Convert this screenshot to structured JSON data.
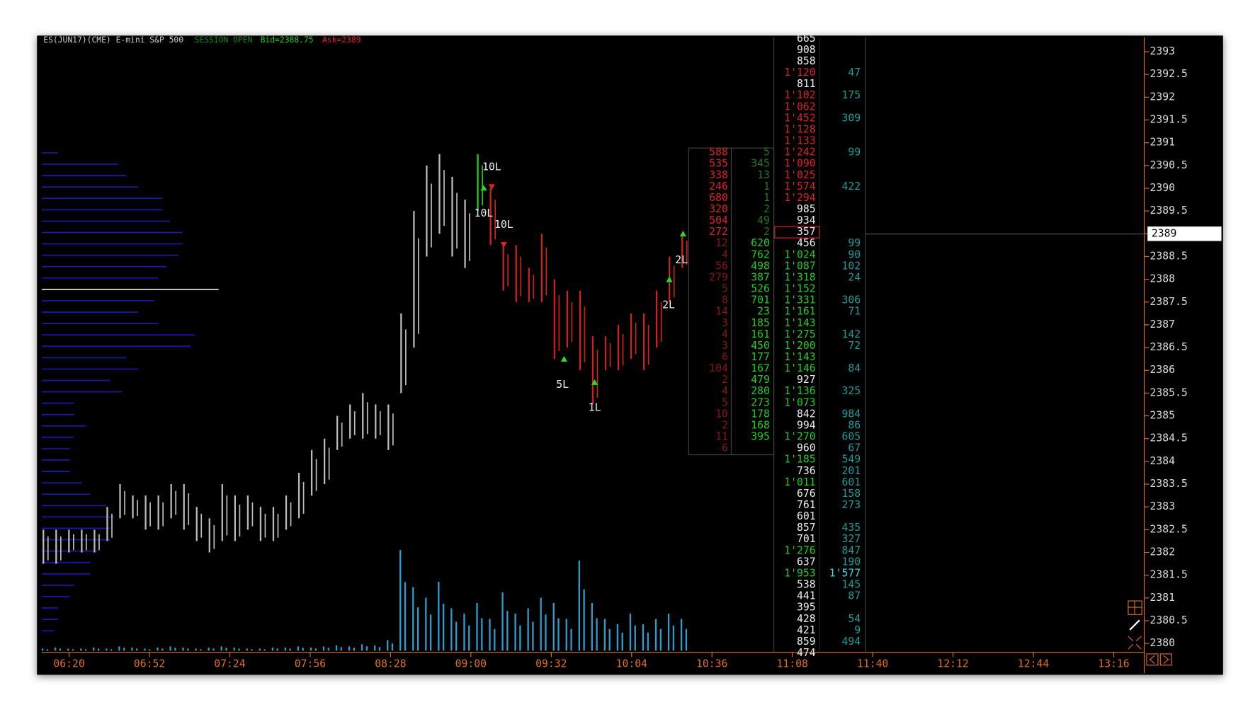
{
  "header": {
    "symbol": "ES(JUN17)(CME) E-mini S&P 500",
    "session": "SESSION OPEN",
    "bid": "Bid=2388.75",
    "ask": "Ask=2389"
  },
  "price_axis": {
    "ylim": [
      2380,
      2393
    ],
    "ticks": [
      2393,
      2392.5,
      2392,
      2391.5,
      2391,
      2390.5,
      2390,
      2389.5,
      2389,
      2388.5,
      2388,
      2387.5,
      2387,
      2386.5,
      2386,
      2385.5,
      2385,
      2384.5,
      2384,
      2383.5,
      2383,
      2382.5,
      2382,
      2381.5,
      2381,
      2380.5,
      2380
    ],
    "current": 2389
  },
  "time_axis": [
    "06:20",
    "06:52",
    "07:24",
    "07:56",
    "08:28",
    "09:00",
    "09:32",
    "10:04",
    "10:36",
    "11:08",
    "11:40",
    "12:12",
    "12:44",
    "13:16"
  ],
  "annotations": [
    "10L",
    "10L",
    "10L",
    "5L",
    "1L",
    "2L",
    "2L"
  ],
  "ladder": {
    "volume": [
      665,
      908,
      858,
      "1'120",
      811,
      "1'102",
      "1'062",
      "1'452",
      "1'128",
      "1'133",
      "1'242",
      "1'090",
      "1'025",
      "1'574",
      "1'294",
      985,
      934,
      357,
      456,
      "1'024",
      "1'087",
      "1'318",
      "1'152",
      "1'331",
      "1'161",
      "1'143",
      "1'275",
      "1'200",
      "1'143",
      "1'146",
      927,
      "1'136",
      "1'073",
      842,
      994,
      "1'270",
      960,
      "1'185",
      736,
      "1'011",
      676,
      761,
      601,
      857,
      701,
      "1'276",
      637,
      "1'953",
      538,
      441,
      395,
      428,
      421,
      859,
      474
    ],
    "bid": [
      null,
      null,
      null,
      null,
      null,
      null,
      null,
      null,
      null,
      null,
      588,
      535,
      338,
      246,
      680,
      320,
      504,
      272,
      12,
      4,
      56,
      279,
      5,
      8,
      14,
      3,
      4,
      3,
      6,
      104,
      2,
      4,
      5,
      10,
      2,
      11,
      6,
      null,
      null,
      null,
      null,
      null,
      null,
      null,
      null,
      null,
      null,
      null,
      null,
      null,
      null,
      null,
      null,
      null,
      null
    ],
    "ask": [
      null,
      null,
      null,
      null,
      null,
      null,
      null,
      null,
      null,
      null,
      5,
      345,
      13,
      1,
      1,
      2,
      49,
      2,
      620,
      762,
      498,
      387,
      526,
      701,
      23,
      185,
      161,
      450,
      177,
      167,
      479,
      280,
      273,
      178,
      168,
      395,
      null,
      null,
      null,
      null,
      null,
      null,
      null,
      null,
      null,
      null,
      null,
      null,
      null,
      null,
      null,
      null,
      null,
      null,
      null
    ],
    "delta": [
      null,
      null,
      null,
      47,
      null,
      175,
      null,
      309,
      null,
      null,
      99,
      null,
      null,
      422,
      null,
      null,
      null,
      null,
      99,
      90,
      102,
      24,
      null,
      306,
      71,
      null,
      142,
      72,
      null,
      84,
      null,
      325,
      null,
      984,
      86,
      605,
      67,
      549,
      201,
      601,
      158,
      273,
      null,
      435,
      327,
      847,
      190,
      "1'577",
      145,
      87,
      null,
      54,
      9,
      494,
      null
    ]
  },
  "price_bars": {
    "highs": [
      2382.5,
      2382.5,
      2382.5,
      2382.5,
      2382.5,
      2383,
      2383.5,
      2383.25,
      2383.25,
      2383.25,
      2383.5,
      2383.5,
      2383,
      2382.75,
      2383.5,
      2383.25,
      2383.25,
      2383,
      2383,
      2383.25,
      2383.75,
      2384.25,
      2384.5,
      2385,
      2385.25,
      2385.5,
      2385.25,
      2385.25,
      2387.25,
      2389.5,
      2390.5,
      2390.75,
      2390.25,
      2389.75,
      2390.75,
      2390,
      2388.75,
      2388.75,
      2388.25,
      2389,
      2388,
      2387.75,
      2387.75,
      2386.75,
      2386.75,
      2387,
      2387.25,
      2387.25,
      2387.75,
      2388.5,
      2389
    ],
    "lows": [
      2381.75,
      2381.75,
      2382,
      2382,
      2382,
      2382.25,
      2382.75,
      2382.75,
      2382.5,
      2382.5,
      2382.75,
      2382.5,
      2382.25,
      2382,
      2382.25,
      2382.25,
      2382.5,
      2382.25,
      2382.25,
      2382.5,
      2382.75,
      2383.25,
      2383.5,
      2384.25,
      2384.5,
      2384.5,
      2384.5,
      2384.25,
      2385.5,
      2386.5,
      2388.5,
      2389,
      2388.5,
      2388.25,
      2389.5,
      2388.75,
      2387.75,
      2387.5,
      2387.5,
      2387.5,
      2386.25,
      2386.5,
      2386,
      2385.25,
      2386,
      2386,
      2386.25,
      2386,
      2386.5,
      2387.5,
      2388.25
    ],
    "colors": [
      "#bbb",
      "#bbb",
      "#bbb",
      "#bbb",
      "#bbb",
      "#bbb",
      "#bbb",
      "#bbb",
      "#bbb",
      "#bbb",
      "#bbb",
      "#bbb",
      "#bbb",
      "#bbb",
      "#bbb",
      "#bbb",
      "#bbb",
      "#bbb",
      "#bbb",
      "#bbb",
      "#bbb",
      "#bbb",
      "#bbb",
      "#bbb",
      "#bbb",
      "#bbb",
      "#bbb",
      "#bbb",
      "#bbb",
      "#bbb",
      "#bbb",
      "#bbb",
      "#bbb",
      "#bbb",
      "#22cc22",
      "#cc2222",
      "#cc2222",
      "#cc2222",
      "#cc2222",
      "#cc2222",
      "#cc2222",
      "#cc2222",
      "#cc2222",
      "#cc2222",
      "#cc2222",
      "#cc2222",
      "#cc2222",
      "#cc2222",
      "#cc2222",
      "#cc2222",
      "#cc2222"
    ]
  },
  "volume": [
    2,
    3,
    2,
    2,
    3,
    2,
    4,
    3,
    2,
    3,
    4,
    3,
    2,
    3,
    4,
    3,
    2,
    2,
    3,
    3,
    4,
    3,
    4,
    5,
    4,
    6,
    5,
    10,
    95,
    60,
    50,
    65,
    40,
    35,
    45,
    30,
    55,
    35,
    40,
    50,
    45,
    30,
    85,
    45,
    30,
    25,
    35,
    25,
    30,
    35,
    30
  ],
  "profile": [
    20,
    95,
    105,
    120,
    150,
    150,
    160,
    175,
    175,
    170,
    155,
    145,
    220,
    140,
    120,
    145,
    190,
    185,
    105,
    120,
    85,
    100,
    40,
    40,
    55,
    40,
    35,
    35,
    35,
    50,
    60,
    80,
    90,
    85,
    85,
    70,
    60,
    60,
    40,
    35,
    20,
    20,
    15
  ]
}
